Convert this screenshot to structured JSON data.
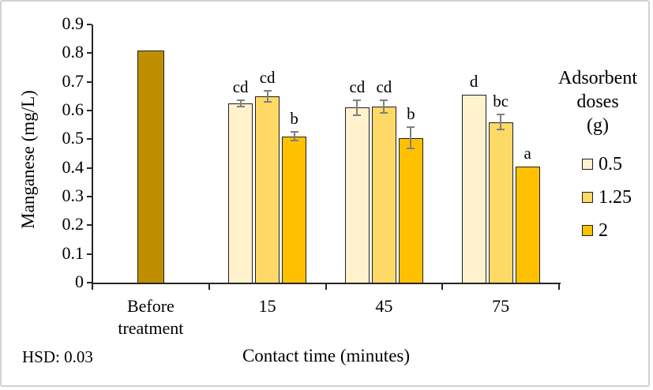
{
  "figure": {
    "background": "#ffffff",
    "frame_border_color": "#d2d2d2"
  },
  "annotation": {
    "hsd_label": "HSD: 0.03"
  },
  "chart_data": {
    "type": "bar",
    "title": "",
    "ylabel": "Manganese (mg/L)",
    "xlabel": "Contact time (minutes)",
    "ylim": [
      0,
      0.9
    ],
    "ytick_step": 0.1,
    "yticks": [
      "0",
      "0.1",
      "0.2",
      "0.3",
      "0.4",
      "0.5",
      "0.6",
      "0.7",
      "0.8",
      "0.9"
    ],
    "grid": "off",
    "categories": [
      "Before treatment",
      "15",
      "45",
      "75"
    ],
    "series_names": [
      "0.5",
      "1.25",
      "2"
    ],
    "groups": [
      {
        "label": "Before treatment",
        "bars": [
          {
            "series": "Before treatment",
            "value": 0.81,
            "error": null,
            "letter": null,
            "color": "#BF8F00"
          }
        ]
      },
      {
        "label": "15",
        "bars": [
          {
            "series": "0.5",
            "value": 0.625,
            "error": 0.012,
            "letter": "cd",
            "color": "#FFF2CC"
          },
          {
            "series": "1.25",
            "value": 0.65,
            "error": 0.02,
            "letter": "cd",
            "color": "#FFD966"
          },
          {
            "series": "2",
            "value": 0.51,
            "error": 0.015,
            "letter": "b",
            "color": "#FFC000"
          }
        ]
      },
      {
        "label": "45",
        "bars": [
          {
            "series": "0.5",
            "value": 0.61,
            "error": 0.027,
            "letter": "cd",
            "color": "#FFF2CC"
          },
          {
            "series": "1.25",
            "value": 0.613,
            "error": 0.022,
            "letter": "cd",
            "color": "#FFD966"
          },
          {
            "series": "2",
            "value": 0.505,
            "error": 0.038,
            "letter": "b",
            "color": "#FFC000"
          }
        ]
      },
      {
        "label": "75",
        "bars": [
          {
            "series": "0.5",
            "value": 0.655,
            "error": null,
            "letter": "d",
            "color": "#FFF2CC"
          },
          {
            "series": "1.25",
            "value": 0.56,
            "error": 0.027,
            "letter": "bc",
            "color": "#FFD966"
          },
          {
            "series": "2",
            "value": 0.405,
            "error": null,
            "letter": "a",
            "color": "#FFC000"
          }
        ]
      }
    ],
    "legend": {
      "position": "right",
      "title_lines": [
        "Adsorbent",
        "doses",
        "(g)"
      ],
      "items": [
        {
          "label": "0.5",
          "color": "#FFF2CC"
        },
        {
          "label": "1.25",
          "color": "#FFD966"
        },
        {
          "label": "2",
          "color": "#FFC000"
        }
      ]
    },
    "error_bar_color": "#7f7f7f",
    "bar_border_color": "#1f1f1f"
  }
}
